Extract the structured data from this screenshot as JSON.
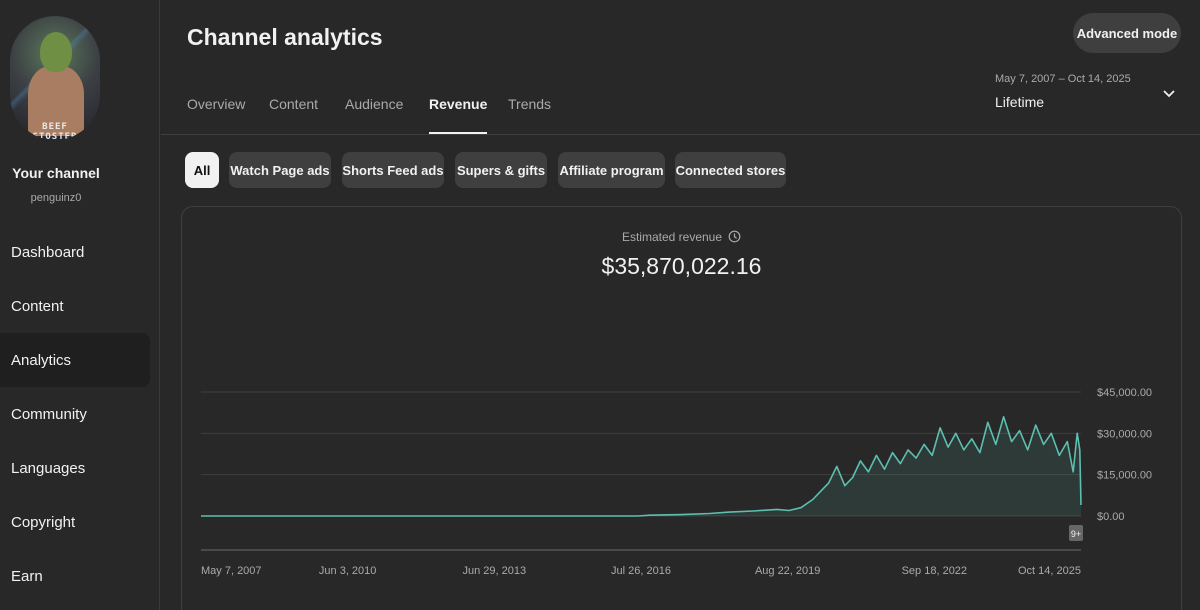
{
  "sidebar": {
    "avatar_text": [
      "BEEF",
      "STOSTER"
    ],
    "channel_title": "Your channel",
    "channel_handle": "penguinz0",
    "items": [
      {
        "label": "Dashboard"
      },
      {
        "label": "Content"
      },
      {
        "label": "Analytics"
      },
      {
        "label": "Community"
      },
      {
        "label": "Languages"
      },
      {
        "label": "Copyright"
      },
      {
        "label": "Earn"
      }
    ],
    "active_item": "Analytics"
  },
  "header": {
    "title": "Channel analytics",
    "advanced_mode_label": "Advanced mode",
    "tabs": [
      {
        "label": "Overview"
      },
      {
        "label": "Content"
      },
      {
        "label": "Audience"
      },
      {
        "label": "Revenue"
      },
      {
        "label": "Trends"
      }
    ],
    "active_tab": "Revenue",
    "date_range": "May 7, 2007 – Oct 14, 2025",
    "date_label": "Lifetime"
  },
  "chips": [
    {
      "label": "All"
    },
    {
      "label": "Watch Page ads"
    },
    {
      "label": "Shorts Feed ads"
    },
    {
      "label": "Supers & gifts"
    },
    {
      "label": "Affiliate program"
    },
    {
      "label": "Connected stores"
    }
  ],
  "selected_chip": "All",
  "metric": {
    "label": "Estimated revenue",
    "value": "$35,870,022.16"
  },
  "colors": {
    "accent": "#5cbfb0",
    "background": "#282828",
    "chip": "#3f3f3f"
  },
  "chart_data": {
    "type": "line",
    "title": "",
    "xlabel": "",
    "ylabel": "",
    "x_ticks": [
      "May 7, 2007",
      "Jun 3, 2010",
      "Jun 29, 2013",
      "Jul 26, 2016",
      "Aug 22, 2019",
      "Sep 18, 2022",
      "Oct 14, 2025"
    ],
    "y_ticks": [
      "$45,000.00",
      "$30,000.00",
      "$15,000.00",
      "$0.00"
    ],
    "ylim": [
      0,
      45000
    ],
    "y_axis_side": "right",
    "grid": true,
    "marker_badge": "9+",
    "series": [
      {
        "points": [
          [
            "2007-05-07",
            0
          ],
          [
            "2016-07-01",
            0
          ],
          [
            "2016-10-01",
            300
          ],
          [
            "2017-06-01",
            500
          ],
          [
            "2018-01-01",
            900
          ],
          [
            "2018-06-01",
            1400
          ],
          [
            "2018-12-01",
            1800
          ],
          [
            "2019-06-01",
            2400
          ],
          [
            "2019-09-01",
            2000
          ],
          [
            "2019-12-01",
            3000
          ],
          [
            "2020-03-01",
            6000
          ],
          [
            "2020-05-01",
            9000
          ],
          [
            "2020-07-01",
            12000
          ],
          [
            "2020-09-01",
            18000
          ],
          [
            "2020-11-01",
            11000
          ],
          [
            "2021-01-01",
            14000
          ],
          [
            "2021-03-01",
            20000
          ],
          [
            "2021-05-01",
            16000
          ],
          [
            "2021-07-01",
            22000
          ],
          [
            "2021-09-01",
            17000
          ],
          [
            "2021-11-01",
            23000
          ],
          [
            "2022-01-01",
            19000
          ],
          [
            "2022-03-01",
            24000
          ],
          [
            "2022-05-01",
            21000
          ],
          [
            "2022-07-01",
            26000
          ],
          [
            "2022-09-01",
            22000
          ],
          [
            "2022-11-01",
            32000
          ],
          [
            "2023-01-01",
            25000
          ],
          [
            "2023-03-01",
            30000
          ],
          [
            "2023-05-01",
            24000
          ],
          [
            "2023-07-01",
            28000
          ],
          [
            "2023-09-01",
            23000
          ],
          [
            "2023-11-01",
            34000
          ],
          [
            "2024-01-01",
            26000
          ],
          [
            "2024-03-01",
            36000
          ],
          [
            "2024-05-01",
            27000
          ],
          [
            "2024-07-01",
            31000
          ],
          [
            "2024-09-01",
            24000
          ],
          [
            "2024-11-01",
            33000
          ],
          [
            "2025-01-01",
            26000
          ],
          [
            "2025-03-01",
            30000
          ],
          [
            "2025-05-01",
            22000
          ],
          [
            "2025-07-01",
            27000
          ],
          [
            "2025-08-15",
            16000
          ],
          [
            "2025-09-15",
            30000
          ],
          [
            "2025-10-05",
            24000
          ],
          [
            "2025-10-14",
            4000
          ]
        ]
      }
    ]
  }
}
